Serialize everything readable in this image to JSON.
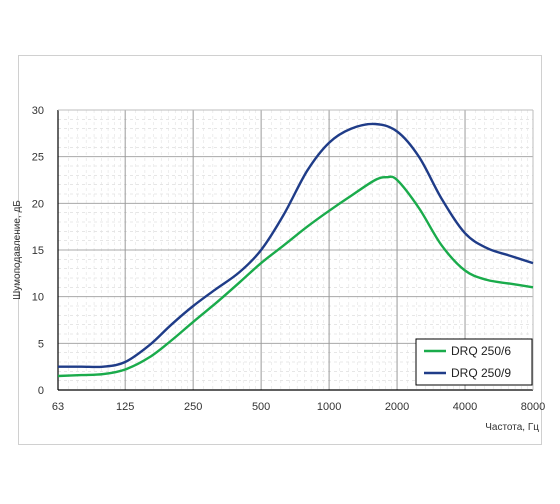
{
  "chart_data": {
    "type": "line",
    "xlabel": "Частота, Гц",
    "ylabel": "Шумоподавление, дБ",
    "x_scale": "log2",
    "categories": [
      "63",
      "125",
      "250",
      "500",
      "1000",
      "2000",
      "4000",
      "8000"
    ],
    "ylim": [
      0,
      30
    ],
    "yticks": [
      "0",
      "5",
      "10",
      "15",
      "20",
      "25",
      "30"
    ],
    "grid": true,
    "legend_position": "bottom-right",
    "series": [
      {
        "name": "DRQ 250/6",
        "color": "#1aab4b",
        "x": [
          63,
          80,
          100,
          125,
          160,
          200,
          250,
          315,
          400,
          500,
          630,
          800,
          1000,
          1250,
          1600,
          1800,
          2000,
          2500,
          3150,
          4000,
          5000,
          6300,
          8000
        ],
        "values": [
          1.5,
          1.6,
          1.7,
          2.2,
          3.5,
          5.3,
          7.3,
          9.3,
          11.5,
          13.6,
          15.5,
          17.5,
          19.2,
          20.8,
          22.5,
          22.8,
          22.5,
          19.5,
          15.5,
          12.8,
          11.8,
          11.4,
          11.0
        ]
      },
      {
        "name": "DRQ 250/9",
        "color": "#1f3c88",
        "x": [
          63,
          80,
          100,
          125,
          160,
          200,
          250,
          315,
          400,
          500,
          630,
          800,
          1000,
          1250,
          1600,
          2000,
          2500,
          3150,
          4000,
          5000,
          6300,
          8000
        ],
        "values": [
          2.5,
          2.5,
          2.5,
          3.0,
          4.8,
          7.0,
          9.0,
          10.8,
          12.6,
          15.0,
          18.8,
          23.5,
          26.5,
          28.0,
          28.5,
          27.7,
          25.0,
          20.5,
          16.8,
          15.2,
          14.4,
          13.6
        ]
      }
    ]
  }
}
